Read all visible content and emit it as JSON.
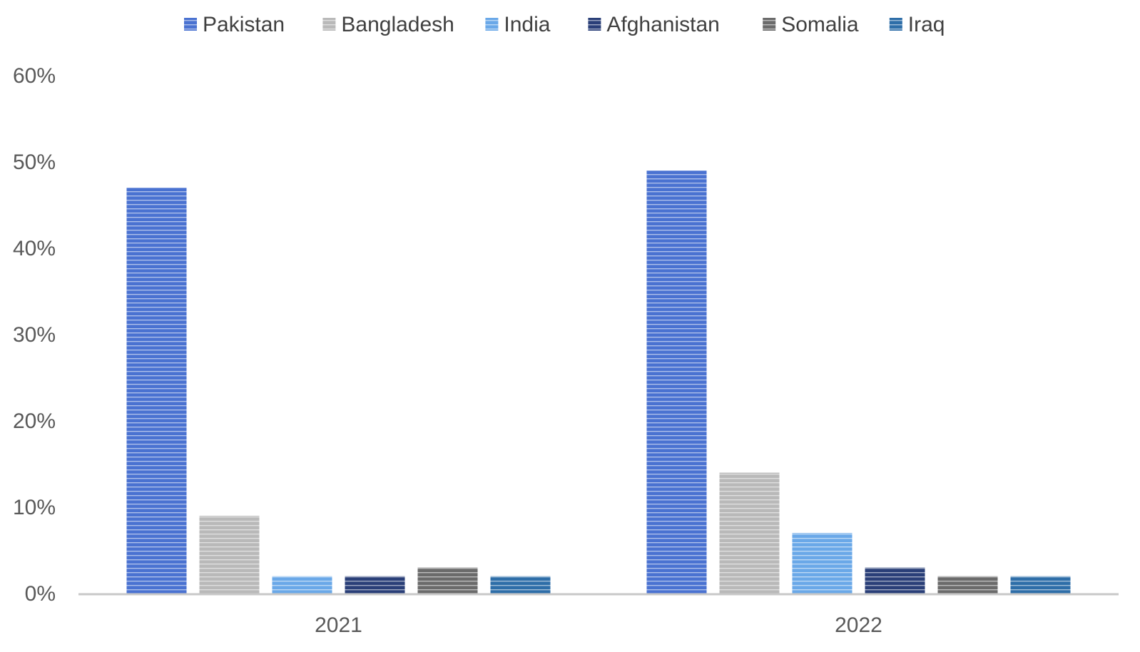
{
  "chart_data": {
    "type": "bar",
    "categories": [
      "2021",
      "2022"
    ],
    "series": [
      {
        "name": "Pakistan",
        "values": [
          47,
          49
        ],
        "color": "#4a72d1"
      },
      {
        "name": "Bangladesh",
        "values": [
          9,
          14
        ],
        "color": "#b9b9b9"
      },
      {
        "name": "India",
        "values": [
          2,
          7
        ],
        "color": "#6aa8e8"
      },
      {
        "name": "Afghanistan",
        "values": [
          2,
          3
        ],
        "color": "#2a3f78"
      },
      {
        "name": "Somalia",
        "values": [
          3,
          2
        ],
        "color": "#6b6b6b"
      },
      {
        "name": "Iraq",
        "values": [
          2,
          2
        ],
        "color": "#2e6ea8"
      }
    ],
    "y_ticks": [
      "0%",
      "10%",
      "20%",
      "30%",
      "40%",
      "50%",
      "60%"
    ],
    "ylim": [
      0,
      60
    ],
    "y_unit": "%",
    "legend_position": "top-center",
    "grid": false,
    "bar_style": "horizontal-stripes"
  }
}
